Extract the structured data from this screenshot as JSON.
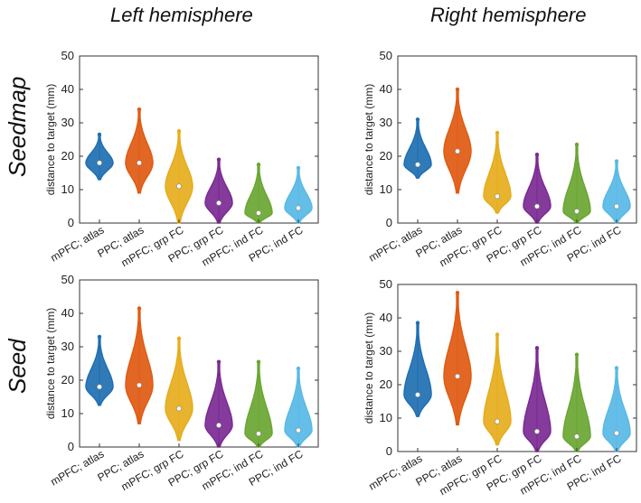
{
  "headings": {
    "left": "Left hemisphere",
    "right": "Right hemisphere"
  },
  "row_labels": {
    "top": "Seedmap",
    "bottom": "Seed"
  },
  "series_colors": [
    "#1f6fb2",
    "#e05a12",
    "#e6ac1c",
    "#7b2a93",
    "#6aa632",
    "#58b9e6"
  ],
  "chart_data": [
    {
      "type": "violin",
      "panel": "Left hemisphere / Seedmap",
      "ylabel": "distance to target (mm)",
      "ylim": [
        0,
        50
      ],
      "yticks": [
        0,
        10,
        20,
        30,
        40,
        50
      ],
      "categories": [
        "mPFC; atlas",
        "PPC; atlas",
        "mPFC; grp FC",
        "PPC; grp FC",
        "mPFC; ind FC",
        "PPC; ind FC"
      ],
      "medians": [
        18,
        18,
        11,
        6,
        3,
        4.5
      ],
      "mins": [
        13,
        9,
        0,
        0,
        0,
        0
      ],
      "maxs": [
        26.5,
        34,
        27.5,
        19,
        17.5,
        16.5
      ]
    },
    {
      "type": "violin",
      "panel": "Right hemisphere / Seedmap",
      "ylabel": "distance to target (mm)",
      "ylim": [
        0,
        50
      ],
      "yticks": [
        0,
        10,
        20,
        30,
        40,
        50
      ],
      "categories": [
        "mPFC; atlas",
        "PPC; atlas",
        "mPFC; grp FC",
        "PPC; grp FC",
        "mPFC; ind FC",
        "PPC; ind FC"
      ],
      "medians": [
        17.5,
        21.5,
        8,
        5,
        3.5,
        5
      ],
      "mins": [
        13.5,
        9,
        3,
        0,
        0,
        0
      ],
      "maxs": [
        31,
        40,
        27,
        20.5,
        23.5,
        18.5
      ]
    },
    {
      "type": "violin",
      "panel": "Left hemisphere / Seed",
      "ylabel": "distance to target (mm)",
      "ylim": [
        0,
        50
      ],
      "yticks": [
        0,
        10,
        20,
        30,
        40,
        50
      ],
      "categories": [
        "mPFC; atlas",
        "PPC; atlas",
        "mPFC; grp FC",
        "PPC; grp FC",
        "mPFC; ind FC",
        "PPC; ind FC"
      ],
      "medians": [
        18,
        18.5,
        11.5,
        6.5,
        4,
        5
      ],
      "mins": [
        12.5,
        7,
        2,
        0,
        0,
        0
      ],
      "maxs": [
        33,
        41.5,
        32.5,
        25.5,
        25.5,
        23.5
      ]
    },
    {
      "type": "violin",
      "panel": "Right hemisphere / Seed",
      "ylabel": "distance to target (mm)",
      "ylim": [
        0,
        50
      ],
      "yticks": [
        0,
        10,
        20,
        30,
        40,
        50
      ],
      "categories": [
        "mPFC; atlas",
        "PPC; atlas",
        "mPFC; grp FC",
        "PPC; grp FC",
        "mPFC; ind FC",
        "PPC; ind FC"
      ],
      "medians": [
        17,
        22.5,
        9,
        6,
        4.5,
        5.5
      ],
      "mins": [
        10.5,
        8,
        2,
        0,
        0,
        0
      ],
      "maxs": [
        38.5,
        47.5,
        35,
        31,
        29,
        25
      ]
    }
  ]
}
